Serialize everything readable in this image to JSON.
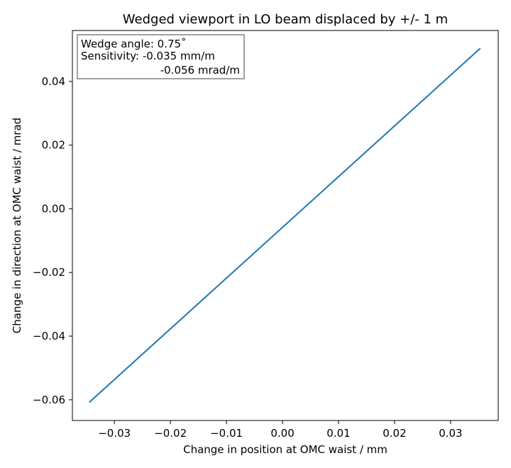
{
  "chart_data": {
    "type": "line",
    "title": "Wedged viewport in LO beam displaced by +/- 1 m",
    "xlabel": "Change in position at OMC waist  / mm",
    "ylabel": "Change in direction at OMC waist / mrad",
    "xlim": [
      -0.0375,
      0.0385
    ],
    "ylim": [
      -0.0665,
      0.056
    ],
    "xticks": [
      -0.03,
      -0.02,
      -0.01,
      0.0,
      0.01,
      0.02,
      0.03
    ],
    "xtick_labels": [
      "−0.03",
      "−0.02",
      "−0.01",
      "0.00",
      "0.01",
      "0.02",
      "0.03"
    ],
    "yticks": [
      -0.06,
      -0.04,
      -0.02,
      0.0,
      0.02,
      0.04
    ],
    "ytick_labels": [
      "−0.06",
      "−0.04",
      "−0.02",
      "0.00",
      "0.02",
      "0.04"
    ],
    "grid": false,
    "series": [
      {
        "color": "#1f77b4",
        "x": [
          -0.0345,
          0.0353
        ],
        "y": [
          -0.0608,
          0.0504
        ]
      }
    ],
    "annotation": {
      "lines": [
        "Wedge angle: 0.75˚",
        "Sensitivity: -0.035 mm/m",
        "-0.056 mrad/m"
      ],
      "placement": "top-left"
    }
  }
}
